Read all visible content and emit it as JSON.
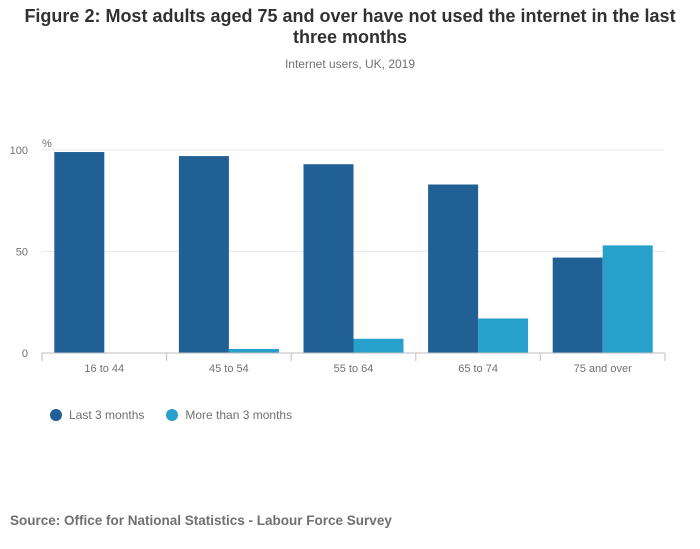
{
  "header": {
    "title": "Figure 2: Most adults aged 75 and over have not used the internet in the last three months",
    "subtitle": "Internet users, UK, 2019"
  },
  "footer": {
    "source": "Source: Office for National Statistics - Labour Force Survey"
  },
  "colors": {
    "series_dark": "#206095",
    "series_light": "#27a0cc",
    "gridline": "#e8e8e8",
    "axis": "#bebebe",
    "text": "#707071"
  },
  "chart_data": {
    "type": "bar",
    "title": "Figure 2: Most adults aged 75 and over have not used the internet in the last three months",
    "subtitle": "Internet users, UK, 2019",
    "xlabel": "",
    "ylabel": "%",
    "ylim": [
      0,
      100
    ],
    "yticks": [
      0,
      50,
      100
    ],
    "grid": true,
    "legend_position": "bottom-left",
    "categories": [
      "16 to 44",
      "45 to 54",
      "55 to 64",
      "65 to 74",
      "75 and over"
    ],
    "series": [
      {
        "name": "Last 3 months",
        "color": "#206095",
        "values": [
          99,
          97,
          93,
          83,
          47
        ]
      },
      {
        "name": "More than 3 months",
        "color": "#27a0cc",
        "values": [
          0,
          2,
          7,
          17,
          53
        ]
      }
    ]
  }
}
